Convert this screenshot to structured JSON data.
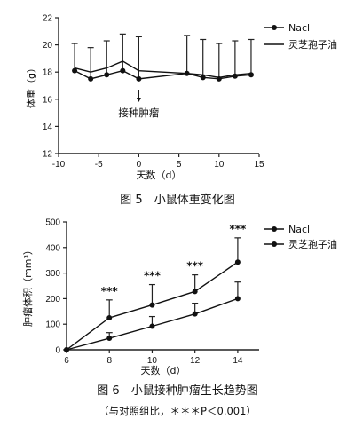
{
  "chart_data": [
    {
      "type": "line",
      "ylabel": "体重（g）",
      "xlabel": "天数（d）",
      "xlim": [
        -10,
        15
      ],
      "ylim": [
        12,
        22
      ],
      "xticks": [
        -10,
        -5,
        0,
        5,
        10,
        15
      ],
      "yticks": [
        12,
        14,
        16,
        18,
        20,
        22
      ],
      "legend_position": "top-right",
      "annotation": "接种肿瘤",
      "annotation_x": 0,
      "series": [
        {
          "name": "Nacl",
          "marker": "circle",
          "x": [
            -8,
            -6,
            -4,
            -2,
            0,
            6,
            8,
            10,
            12,
            14
          ],
          "y": [
            18.1,
            17.5,
            17.8,
            18.1,
            17.5,
            17.9,
            17.6,
            17.5,
            17.7,
            17.8
          ],
          "err": [
            2.0,
            2.3,
            2.5,
            2.7,
            3.1,
            2.8,
            2.8,
            2.6,
            2.6,
            2.6
          ]
        },
        {
          "name": "灵芝孢子油",
          "marker": "none",
          "x": [
            -8,
            -6,
            -4,
            -2,
            0,
            6,
            8,
            10,
            12,
            14
          ],
          "y": [
            18.3,
            18.0,
            18.3,
            18.8,
            18.1,
            17.9,
            17.8,
            17.6,
            17.8,
            17.9
          ],
          "err": [
            0,
            0,
            0,
            0,
            0,
            0,
            0,
            0,
            0,
            0
          ]
        }
      ]
    },
    {
      "type": "line",
      "ylabel": "肿瘤体积（mm³）",
      "xlabel": "天数（d）",
      "xlim": [
        6,
        15
      ],
      "ylim": [
        0,
        500
      ],
      "xticks": [
        6,
        8,
        10,
        12,
        14
      ],
      "yticks": [
        0,
        100,
        200,
        300,
        400,
        500
      ],
      "legend_position": "top-right",
      "significance": [
        "***",
        "***",
        "***",
        "***"
      ],
      "significance_x": [
        8,
        10,
        12,
        14
      ],
      "series": [
        {
          "name": "Nacl",
          "marker": "circle",
          "x": [
            6,
            8,
            10,
            12,
            14
          ],
          "y": [
            0,
            125,
            175,
            228,
            343
          ],
          "err": [
            0,
            70,
            80,
            65,
            95
          ]
        },
        {
          "name": "灵芝孢子油",
          "marker": "circle",
          "x": [
            6,
            8,
            10,
            12,
            14
          ],
          "y": [
            0,
            45,
            92,
            140,
            200
          ],
          "err": [
            0,
            22,
            38,
            42,
            65
          ]
        }
      ]
    }
  ],
  "captions": {
    "fig5": "图 5　小鼠体重变化图",
    "fig6": "图 6　小鼠接种肿瘤生长趋势图",
    "fig6_note": "（与对照组比，＊＊＊P＜0.001）"
  }
}
